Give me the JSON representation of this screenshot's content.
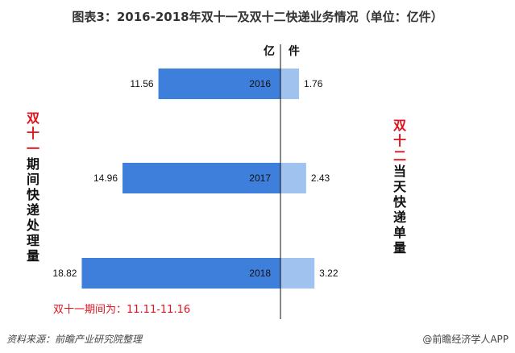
{
  "chart_data": {
    "type": "bar",
    "orientation": "horizontal-butterfly",
    "title": "图表3：2016-2018年双十一及双十二快递业务情况（单位：亿件）",
    "unit_label": "亿 件",
    "categories": [
      "2016",
      "2017",
      "2018"
    ],
    "series": [
      {
        "name": "双十一期间快递处理量",
        "side": "left",
        "color": "#3f7fdc",
        "values": [
          11.56,
          14.96,
          18.82
        ]
      },
      {
        "name": "双十二当天快递单量",
        "side": "right",
        "color": "#9fc2ef",
        "values": [
          1.76,
          2.43,
          3.22
        ]
      }
    ],
    "left_label": {
      "highlight": "双十一",
      "rest": "期间快递处理量"
    },
    "right_label": {
      "highlight": "双十二",
      "rest": "当天快递单量"
    },
    "annotation": "双十一期间为：11.11-11.16",
    "grid": false
  },
  "footer": {
    "source": "资料来源：前瞻产业研究院整理",
    "credit": "@前瞻经济学人APP"
  }
}
